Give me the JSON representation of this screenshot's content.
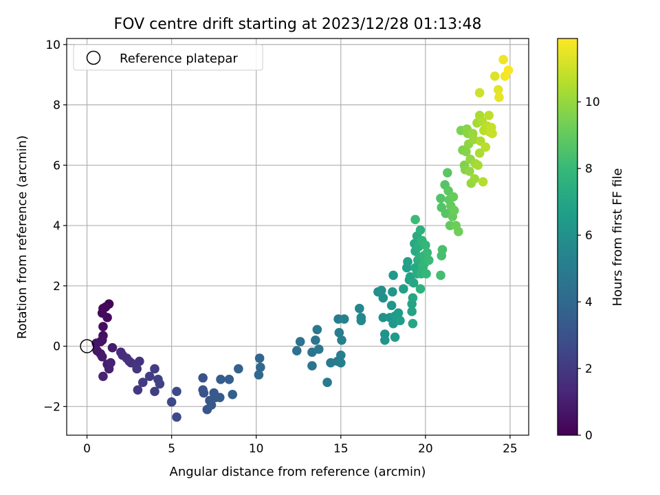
{
  "chart_data": {
    "type": "scatter",
    "title": "FOV centre drift starting at 2023/12/28 01:13:48",
    "xlabel": "Angular distance from reference (arcmin)",
    "ylabel": "Rotation from reference (arcmin)",
    "xlim": [
      -1.2,
      26.1
    ],
    "ylim": [
      -2.95,
      10.2
    ],
    "xticks": [
      0,
      5,
      10,
      15,
      20,
      25
    ],
    "yticks": [
      -2,
      0,
      2,
      4,
      6,
      8,
      10
    ],
    "xtick_labels": [
      "0",
      "5",
      "10",
      "15",
      "20",
      "25"
    ],
    "ytick_labels": [
      "−2",
      "0",
      "2",
      "4",
      "6",
      "8",
      "10"
    ],
    "grid": true,
    "legend": {
      "placement": "top-left",
      "entries": [
        "Reference platepar"
      ]
    },
    "reference_point": {
      "x": 0,
      "y": 0
    },
    "colorbar": {
      "label": "Hours from first FF file",
      "colormap": "viridis",
      "range": [
        0,
        11.9
      ],
      "ticks": [
        0,
        2,
        4,
        6,
        8,
        10
      ],
      "tick_labels": [
        "0",
        "2",
        "4",
        "6",
        "8",
        "10"
      ]
    },
    "points": [
      {
        "x": 1.3,
        "y": 1.4,
        "c": 0.1
      },
      {
        "x": 1.1,
        "y": 1.3,
        "c": 0.2
      },
      {
        "x": 0.95,
        "y": 1.25,
        "c": 0.25
      },
      {
        "x": 0.9,
        "y": 1.1,
        "c": 0.3
      },
      {
        "x": 1.2,
        "y": 0.95,
        "c": 0.35
      },
      {
        "x": 0.95,
        "y": 0.65,
        "c": 0.4
      },
      {
        "x": 0.95,
        "y": 0.35,
        "c": 0.5
      },
      {
        "x": 0.9,
        "y": 0.2,
        "c": 0.55
      },
      {
        "x": 0.8,
        "y": 0.15,
        "c": 0.6
      },
      {
        "x": 0.55,
        "y": 0.1,
        "c": 0.65
      },
      {
        "x": 0.6,
        "y": -0.15,
        "c": 0.7
      },
      {
        "x": 0.8,
        "y": -0.25,
        "c": 0.75
      },
      {
        "x": 0.9,
        "y": -0.35,
        "c": 0.8
      },
      {
        "x": 1.5,
        "y": -0.05,
        "c": 0.9
      },
      {
        "x": 1.2,
        "y": -0.6,
        "c": 1.0
      },
      {
        "x": 1.3,
        "y": -0.75,
        "c": 1.05
      },
      {
        "x": 1.4,
        "y": -0.55,
        "c": 1.1
      },
      {
        "x": 0.95,
        "y": -1.0,
        "c": 1.15
      },
      {
        "x": 2.0,
        "y": -0.2,
        "c": 1.5
      },
      {
        "x": 2.1,
        "y": -0.3,
        "c": 1.55
      },
      {
        "x": 2.35,
        "y": -0.4,
        "c": 1.6
      },
      {
        "x": 2.5,
        "y": -0.5,
        "c": 1.65
      },
      {
        "x": 2.6,
        "y": -0.55,
        "c": 1.7
      },
      {
        "x": 2.9,
        "y": -0.6,
        "c": 1.75
      },
      {
        "x": 3.1,
        "y": -0.5,
        "c": 1.8
      },
      {
        "x": 2.95,
        "y": -0.75,
        "c": 1.85
      },
      {
        "x": 3.0,
        "y": -1.45,
        "c": 2.0
      },
      {
        "x": 3.3,
        "y": -1.2,
        "c": 2.05
      },
      {
        "x": 3.7,
        "y": -1.0,
        "c": 2.1
      },
      {
        "x": 4.0,
        "y": -0.75,
        "c": 2.15
      },
      {
        "x": 4.0,
        "y": -1.5,
        "c": 2.2
      },
      {
        "x": 4.2,
        "y": -1.1,
        "c": 2.25
      },
      {
        "x": 4.3,
        "y": -1.25,
        "c": 2.3
      },
      {
        "x": 5.0,
        "y": -1.85,
        "c": 2.6
      },
      {
        "x": 5.3,
        "y": -1.5,
        "c": 2.7
      },
      {
        "x": 5.3,
        "y": -2.35,
        "c": 2.75
      },
      {
        "x": 6.85,
        "y": -1.05,
        "c": 3.0
      },
      {
        "x": 6.85,
        "y": -1.45,
        "c": 3.05
      },
      {
        "x": 6.9,
        "y": -1.55,
        "c": 3.1
      },
      {
        "x": 7.1,
        "y": -2.1,
        "c": 3.15
      },
      {
        "x": 7.25,
        "y": -1.8,
        "c": 3.2
      },
      {
        "x": 7.35,
        "y": -1.95,
        "c": 3.25
      },
      {
        "x": 7.5,
        "y": -1.55,
        "c": 3.3
      },
      {
        "x": 7.6,
        "y": -1.7,
        "c": 3.35
      },
      {
        "x": 7.85,
        "y": -1.7,
        "c": 3.4
      },
      {
        "x": 7.9,
        "y": -1.1,
        "c": 3.45
      },
      {
        "x": 8.4,
        "y": -1.1,
        "c": 3.5
      },
      {
        "x": 8.6,
        "y": -1.6,
        "c": 3.55
      },
      {
        "x": 8.95,
        "y": -0.75,
        "c": 3.65
      },
      {
        "x": 10.2,
        "y": -0.4,
        "c": 3.9
      },
      {
        "x": 10.25,
        "y": -0.7,
        "c": 3.95
      },
      {
        "x": 10.15,
        "y": -0.95,
        "c": 4.0
      },
      {
        "x": 12.4,
        "y": -0.15,
        "c": 4.5
      },
      {
        "x": 12.6,
        "y": 0.15,
        "c": 4.55
      },
      {
        "x": 13.3,
        "y": -0.2,
        "c": 4.6
      },
      {
        "x": 13.3,
        "y": -0.65,
        "c": 4.65
      },
      {
        "x": 13.5,
        "y": 0.2,
        "c": 4.7
      },
      {
        "x": 13.6,
        "y": 0.55,
        "c": 4.75
      },
      {
        "x": 13.7,
        "y": -0.1,
        "c": 4.8
      },
      {
        "x": 14.2,
        "y": -1.2,
        "c": 4.85
      },
      {
        "x": 14.4,
        "y": -0.55,
        "c": 4.9
      },
      {
        "x": 14.8,
        "y": -0.5,
        "c": 4.95
      },
      {
        "x": 14.85,
        "y": 0.9,
        "c": 5.0
      },
      {
        "x": 14.9,
        "y": 0.45,
        "c": 5.05
      },
      {
        "x": 15.0,
        "y": -0.3,
        "c": 5.1
      },
      {
        "x": 15.0,
        "y": -0.55,
        "c": 5.15
      },
      {
        "x": 15.05,
        "y": 0.2,
        "c": 5.2
      },
      {
        "x": 15.2,
        "y": 0.9,
        "c": 5.25
      },
      {
        "x": 16.1,
        "y": 1.25,
        "c": 5.5
      },
      {
        "x": 16.2,
        "y": 0.95,
        "c": 5.55
      },
      {
        "x": 16.2,
        "y": 0.85,
        "c": 5.6
      },
      {
        "x": 17.2,
        "y": 1.8,
        "c": 5.9
      },
      {
        "x": 17.4,
        "y": 1.85,
        "c": 5.95
      },
      {
        "x": 17.5,
        "y": 1.6,
        "c": 6.0
      },
      {
        "x": 17.5,
        "y": 0.95,
        "c": 6.05
      },
      {
        "x": 17.6,
        "y": 0.4,
        "c": 6.1
      },
      {
        "x": 17.6,
        "y": 0.2,
        "c": 6.15
      },
      {
        "x": 17.9,
        "y": 0.95,
        "c": 6.2
      },
      {
        "x": 18.0,
        "y": 1.35,
        "c": 6.25
      },
      {
        "x": 18.05,
        "y": 1.8,
        "c": 6.3
      },
      {
        "x": 18.1,
        "y": 0.75,
        "c": 6.35
      },
      {
        "x": 18.1,
        "y": 2.35,
        "c": 6.4
      },
      {
        "x": 18.2,
        "y": 0.3,
        "c": 6.45
      },
      {
        "x": 18.2,
        "y": 1.0,
        "c": 6.5
      },
      {
        "x": 18.4,
        "y": 1.1,
        "c": 6.55
      },
      {
        "x": 18.5,
        "y": 0.85,
        "c": 6.6
      },
      {
        "x": 18.7,
        "y": 1.9,
        "c": 6.65
      },
      {
        "x": 18.9,
        "y": 2.6,
        "c": 6.7
      },
      {
        "x": 18.95,
        "y": 2.8,
        "c": 6.75
      },
      {
        "x": 19.05,
        "y": 2.2,
        "c": 6.8
      },
      {
        "x": 19.1,
        "y": 2.3,
        "c": 6.85
      },
      {
        "x": 19.2,
        "y": 1.4,
        "c": 6.9
      },
      {
        "x": 19.2,
        "y": 1.15,
        "c": 6.95
      },
      {
        "x": 19.25,
        "y": 1.6,
        "c": 7.0
      },
      {
        "x": 19.25,
        "y": 0.75,
        "c": 7.05
      },
      {
        "x": 19.3,
        "y": 2.1,
        "c": 7.1
      },
      {
        "x": 19.35,
        "y": 3.4,
        "c": 7.15
      },
      {
        "x": 19.4,
        "y": 2.6,
        "c": 7.2
      },
      {
        "x": 19.4,
        "y": 3.15,
        "c": 7.25
      },
      {
        "x": 19.5,
        "y": 3.65,
        "c": 7.3
      },
      {
        "x": 19.5,
        "y": 2.4,
        "c": 7.35
      },
      {
        "x": 19.55,
        "y": 2.85,
        "c": 7.4
      },
      {
        "x": 19.6,
        "y": 3.3,
        "c": 7.45
      },
      {
        "x": 19.65,
        "y": 2.95,
        "c": 7.5
      },
      {
        "x": 19.7,
        "y": 3.85,
        "c": 7.55
      },
      {
        "x": 19.7,
        "y": 1.9,
        "c": 7.6
      },
      {
        "x": 19.75,
        "y": 2.4,
        "c": 7.65
      },
      {
        "x": 19.8,
        "y": 3.5,
        "c": 7.7
      },
      {
        "x": 19.85,
        "y": 2.6,
        "c": 7.75
      },
      {
        "x": 19.9,
        "y": 3.0,
        "c": 7.8
      },
      {
        "x": 19.95,
        "y": 2.75,
        "c": 7.85
      },
      {
        "x": 20.0,
        "y": 3.35,
        "c": 7.9
      },
      {
        "x": 20.05,
        "y": 2.4,
        "c": 7.95
      },
      {
        "x": 20.1,
        "y": 3.1,
        "c": 8.0
      },
      {
        "x": 20.2,
        "y": 2.85,
        "c": 8.05
      },
      {
        "x": 19.4,
        "y": 4.2,
        "c": 8.1
      },
      {
        "x": 20.9,
        "y": 2.35,
        "c": 8.3
      },
      {
        "x": 20.95,
        "y": 3.0,
        "c": 8.35
      },
      {
        "x": 21.0,
        "y": 3.2,
        "c": 8.4
      },
      {
        "x": 20.9,
        "y": 4.9,
        "c": 8.6
      },
      {
        "x": 20.95,
        "y": 4.6,
        "c": 8.65
      },
      {
        "x": 21.15,
        "y": 5.35,
        "c": 8.7
      },
      {
        "x": 21.2,
        "y": 4.4,
        "c": 8.75
      },
      {
        "x": 21.3,
        "y": 5.75,
        "c": 8.8
      },
      {
        "x": 21.35,
        "y": 5.15,
        "c": 8.85
      },
      {
        "x": 21.4,
        "y": 4.85,
        "c": 8.9
      },
      {
        "x": 21.45,
        "y": 4.0,
        "c": 8.95
      },
      {
        "x": 21.5,
        "y": 4.65,
        "c": 9.0
      },
      {
        "x": 21.6,
        "y": 4.3,
        "c": 9.05
      },
      {
        "x": 21.65,
        "y": 4.95,
        "c": 9.1
      },
      {
        "x": 21.7,
        "y": 4.5,
        "c": 9.15
      },
      {
        "x": 21.8,
        "y": 4.0,
        "c": 9.2
      },
      {
        "x": 21.95,
        "y": 3.8,
        "c": 9.25
      },
      {
        "x": 22.1,
        "y": 7.15,
        "c": 9.5
      },
      {
        "x": 22.2,
        "y": 6.5,
        "c": 9.55
      },
      {
        "x": 22.3,
        "y": 6.0,
        "c": 9.6
      },
      {
        "x": 22.35,
        "y": 5.85,
        "c": 9.65
      },
      {
        "x": 22.4,
        "y": 6.45,
        "c": 9.7
      },
      {
        "x": 22.45,
        "y": 7.2,
        "c": 9.75
      },
      {
        "x": 22.5,
        "y": 7.05,
        "c": 9.8
      },
      {
        "x": 22.55,
        "y": 6.7,
        "c": 9.85
      },
      {
        "x": 22.6,
        "y": 5.8,
        "c": 9.9
      },
      {
        "x": 22.65,
        "y": 6.2,
        "c": 9.95
      },
      {
        "x": 22.7,
        "y": 5.4,
        "c": 10.0
      },
      {
        "x": 22.8,
        "y": 7.05,
        "c": 10.05
      },
      {
        "x": 22.85,
        "y": 6.85,
        "c": 10.1
      },
      {
        "x": 22.9,
        "y": 5.55,
        "c": 10.15
      },
      {
        "x": 22.95,
        "y": 6.05,
        "c": 10.2
      },
      {
        "x": 23.05,
        "y": 7.4,
        "c": 10.25
      },
      {
        "x": 23.1,
        "y": 6.0,
        "c": 10.3
      },
      {
        "x": 23.2,
        "y": 7.65,
        "c": 10.35
      },
      {
        "x": 23.2,
        "y": 6.4,
        "c": 10.4
      },
      {
        "x": 23.25,
        "y": 6.8,
        "c": 10.45
      },
      {
        "x": 23.35,
        "y": 7.45,
        "c": 10.5
      },
      {
        "x": 23.4,
        "y": 5.45,
        "c": 10.55
      },
      {
        "x": 23.45,
        "y": 7.15,
        "c": 10.6
      },
      {
        "x": 23.55,
        "y": 6.6,
        "c": 10.65
      },
      {
        "x": 23.65,
        "y": 7.3,
        "c": 10.7
      },
      {
        "x": 23.75,
        "y": 7.65,
        "c": 10.75
      },
      {
        "x": 23.8,
        "y": 7.1,
        "c": 10.8
      },
      {
        "x": 23.9,
        "y": 7.25,
        "c": 10.85
      },
      {
        "x": 23.95,
        "y": 7.05,
        "c": 10.9
      },
      {
        "x": 23.2,
        "y": 8.4,
        "c": 11.0
      },
      {
        "x": 24.1,
        "y": 8.95,
        "c": 11.3
      },
      {
        "x": 24.3,
        "y": 8.5,
        "c": 11.4
      },
      {
        "x": 24.35,
        "y": 8.25,
        "c": 11.5
      },
      {
        "x": 24.6,
        "y": 9.5,
        "c": 11.6
      },
      {
        "x": 24.7,
        "y": 8.95,
        "c": 11.7
      },
      {
        "x": 24.9,
        "y": 9.15,
        "c": 11.8
      }
    ]
  }
}
